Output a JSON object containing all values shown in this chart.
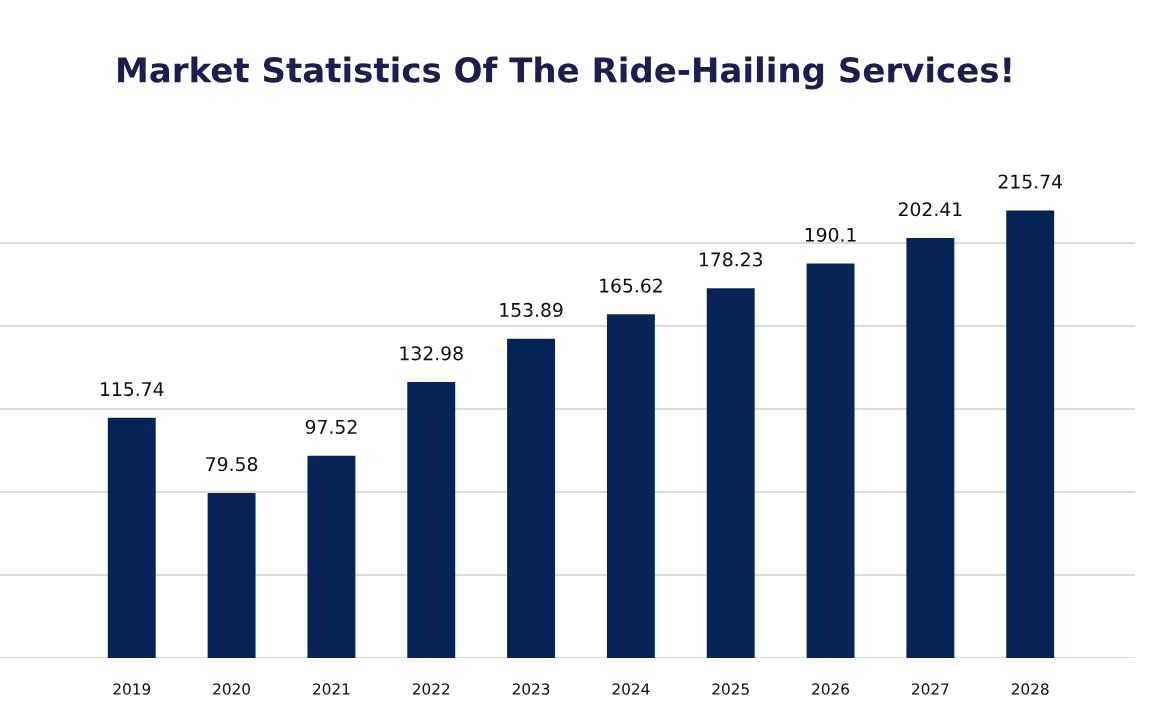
{
  "chart_data": {
    "type": "bar",
    "title": "Market Statistics Of The Ride-Hailing Services!",
    "categories": [
      "2019",
      "2020",
      "2021",
      "2022",
      "2023",
      "2024",
      "2025",
      "2026",
      "2027",
      "2028"
    ],
    "values": [
      115.74,
      79.58,
      97.52,
      132.98,
      153.89,
      165.62,
      178.23,
      190.1,
      202.41,
      215.74
    ],
    "color": "#072457",
    "yticks": [
      {
        "value": 0,
        "label": null
      },
      {
        "value": 40,
        "label": null
      },
      {
        "value": 80,
        "label": null
      },
      {
        "value": 120,
        "label": null
      },
      {
        "value": 160,
        "label": null
      },
      {
        "value": 200,
        "label": null
      }
    ],
    "grid": "y",
    "data_labels": true
  }
}
